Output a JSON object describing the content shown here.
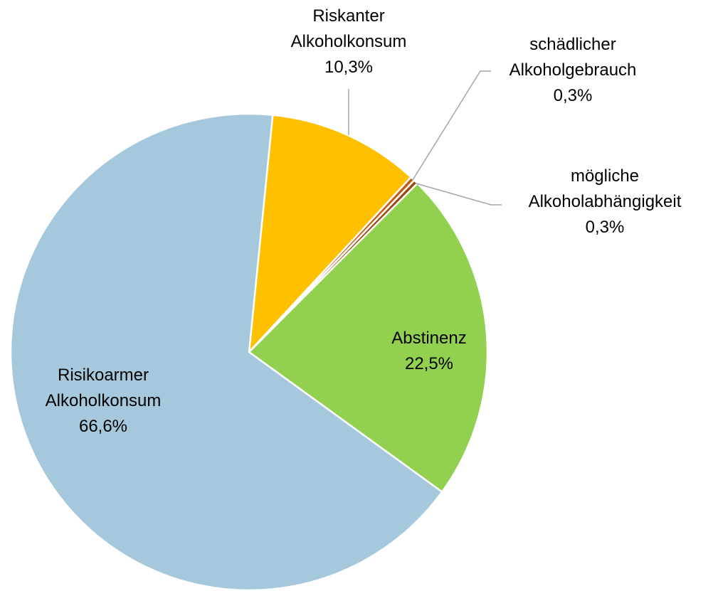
{
  "chart_data": {
    "type": "pie",
    "categories": [
      "Riskanter Alkoholkonsum",
      "schädlicher Alkoholgebrauch",
      "mögliche Alkoholabhängigkeit",
      "Abstinenz",
      "Risikoarmer Alkoholkonsum"
    ],
    "values": [
      10.3,
      0.3,
      0.3,
      22.5,
      66.6
    ],
    "value_labels": [
      "10,3%",
      "0,3%",
      "0,3%",
      "22,5%",
      "66,6%"
    ],
    "colors": [
      "#ffc000",
      "#c55a11",
      "#9c4a10",
      "#92d050",
      "#a5c8dc"
    ]
  }
}
